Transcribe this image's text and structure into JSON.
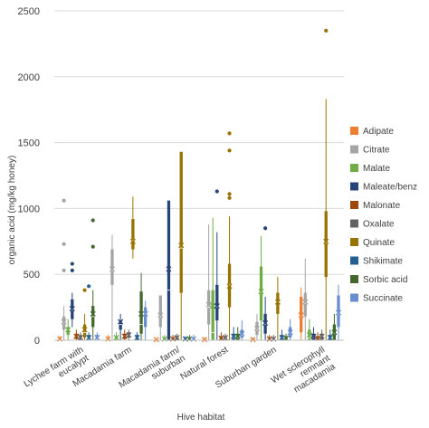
{
  "chart_data": {
    "type": "box",
    "xlabel": "Hive habitat",
    "ylabel": "organic acid (mg/kg honey)",
    "ylim": [
      0,
      2500
    ],
    "yticks": [
      0,
      500,
      1000,
      1500,
      2000,
      2500
    ],
    "grid": "horizontal",
    "legend_position": "right",
    "categories": [
      "Lychee farm with eucalypt",
      "Macadamia farm",
      "Macadamia farm/ suburban",
      "Natural forest",
      "Suburban garden",
      "Wet sclerophyll remnant macadamia"
    ],
    "series": [
      {
        "name": "Adipate",
        "color": "#ED7D31",
        "boxes": [
          {
            "min": 0,
            "q1": 0,
            "median": 0,
            "q3": 10,
            "max": 30,
            "mean": 10,
            "outliers": []
          },
          {
            "min": 0,
            "q1": 0,
            "median": 0,
            "q3": 10,
            "max": 40,
            "mean": 10,
            "outliers": []
          },
          {
            "min": 0,
            "q1": 0,
            "median": 0,
            "q3": 5,
            "max": 10,
            "mean": 5,
            "outliers": []
          },
          {
            "min": 0,
            "q1": 0,
            "median": 0,
            "q3": 10,
            "max": 20,
            "mean": 5,
            "outliers": []
          },
          {
            "min": 0,
            "q1": 0,
            "median": 0,
            "q3": 10,
            "max": 20,
            "mean": 5,
            "outliers": []
          },
          {
            "min": 0,
            "q1": 60,
            "median": 180,
            "q3": 330,
            "max": 400,
            "mean": 190,
            "outliers": []
          }
        ]
      },
      {
        "name": "Citrate",
        "color": "#A5A5A5",
        "boxes": [
          {
            "min": 0,
            "q1": 80,
            "median": 130,
            "q3": 180,
            "max": 260,
            "mean": 140,
            "outliers": [
              530,
              730,
              1060
            ]
          },
          {
            "min": 0,
            "q1": 420,
            "median": 530,
            "q3": 690,
            "max": 800,
            "mean": 540,
            "outliers": []
          },
          {
            "min": 0,
            "q1": 100,
            "median": 180,
            "q3": 340,
            "max": 340,
            "mean": 190,
            "outliers": []
          },
          {
            "min": 0,
            "q1": 120,
            "median": 250,
            "q3": 380,
            "max": 880,
            "mean": 270,
            "outliers": []
          },
          {
            "min": 0,
            "q1": 40,
            "median": 80,
            "q3": 140,
            "max": 200,
            "mean": 90,
            "outliers": []
          },
          {
            "min": 0,
            "q1": 180,
            "median": 280,
            "q3": 360,
            "max": 620,
            "mean": 290,
            "outliers": []
          }
        ]
      },
      {
        "name": "Malate",
        "color": "#70AD47",
        "boxes": [
          {
            "min": 0,
            "q1": 40,
            "median": 80,
            "q3": 100,
            "max": 160,
            "mean": 80,
            "outliers": []
          },
          {
            "min": 0,
            "q1": 0,
            "median": 10,
            "q3": 30,
            "max": 60,
            "mean": 20,
            "outliers": []
          },
          {
            "min": 0,
            "q1": 0,
            "median": 0,
            "q3": 20,
            "max": 40,
            "mean": 10,
            "outliers": []
          },
          {
            "min": 0,
            "q1": 0,
            "median": 60,
            "q3": 380,
            "max": 930,
            "mean": 260,
            "outliers": []
          },
          {
            "min": 0,
            "q1": 150,
            "median": 360,
            "q3": 560,
            "max": 790,
            "mean": 370,
            "outliers": []
          },
          {
            "min": 0,
            "q1": 0,
            "median": 20,
            "q3": 80,
            "max": 160,
            "mean": 40,
            "outliers": []
          }
        ]
      },
      {
        "name": "Maleate/benz",
        "color": "#264478",
        "boxes": [
          {
            "min": 100,
            "q1": 160,
            "median": 230,
            "q3": 310,
            "max": 360,
            "mean": 240,
            "outliers": [
              530,
              580
            ]
          },
          {
            "min": 0,
            "q1": 80,
            "median": 120,
            "q3": 150,
            "max": 200,
            "mean": 140,
            "outliers": []
          },
          {
            "min": 0,
            "q1": 0,
            "median": 380,
            "q3": 1060,
            "max": 1060,
            "mean": 540,
            "outliers": []
          },
          {
            "min": 0,
            "q1": 150,
            "median": 250,
            "q3": 420,
            "max": 820,
            "mean": 260,
            "outliers": [
              1130
            ]
          },
          {
            "min": 0,
            "q1": 50,
            "median": 120,
            "q3": 200,
            "max": 330,
            "mean": 130,
            "outliers": [
              850
            ]
          },
          {
            "min": 0,
            "q1": 0,
            "median": 20,
            "q3": 50,
            "max": 100,
            "mean": 30,
            "outliers": []
          }
        ]
      },
      {
        "name": "Malonate",
        "color": "#9E480E",
        "boxes": [
          {
            "min": 0,
            "q1": 10,
            "median": 30,
            "q3": 50,
            "max": 80,
            "mean": 30,
            "outliers": []
          },
          {
            "min": 0,
            "q1": 10,
            "median": 30,
            "q3": 50,
            "max": 80,
            "mean": 30,
            "outliers": []
          },
          {
            "min": 0,
            "q1": 0,
            "median": 10,
            "q3": 20,
            "max": 40,
            "mean": 10,
            "outliers": []
          },
          {
            "min": 0,
            "q1": 0,
            "median": 10,
            "q3": 30,
            "max": 60,
            "mean": 15,
            "outliers": []
          },
          {
            "min": 0,
            "q1": 0,
            "median": 10,
            "q3": 20,
            "max": 40,
            "mean": 10,
            "outliers": []
          },
          {
            "min": 0,
            "q1": 0,
            "median": 10,
            "q3": 30,
            "max": 60,
            "mean": 15,
            "outliers": []
          }
        ]
      },
      {
        "name": "Oxalate",
        "color": "#636363",
        "boxes": [
          {
            "min": 0,
            "q1": 0,
            "median": 20,
            "q3": 40,
            "max": 60,
            "mean": 20,
            "outliers": []
          },
          {
            "min": 0,
            "q1": 20,
            "median": 40,
            "q3": 60,
            "max": 80,
            "mean": 40,
            "outliers": []
          },
          {
            "min": 0,
            "q1": 0,
            "median": 20,
            "q3": 30,
            "max": 50,
            "mean": 20,
            "outliers": []
          },
          {
            "min": 0,
            "q1": 0,
            "median": 10,
            "q3": 30,
            "max": 50,
            "mean": 20,
            "outliers": []
          },
          {
            "min": 0,
            "q1": 0,
            "median": 10,
            "q3": 20,
            "max": 40,
            "mean": 10,
            "outliers": []
          },
          {
            "min": 0,
            "q1": 0,
            "median": 30,
            "q3": 50,
            "max": 80,
            "mean": 30,
            "outliers": []
          }
        ]
      },
      {
        "name": "Quinate",
        "color": "#997300",
        "boxes": [
          {
            "min": 0,
            "q1": 20,
            "median": 60,
            "q3": 120,
            "max": 200,
            "mean": 80,
            "outliers": [
              380
            ]
          },
          {
            "min": 620,
            "q1": 690,
            "median": 760,
            "q3": 920,
            "max": 1090,
            "mean": 750,
            "outliers": []
          },
          {
            "min": 0,
            "q1": 360,
            "median": 700,
            "q3": 1430,
            "max": 1430,
            "mean": 720,
            "outliers": []
          },
          {
            "min": 0,
            "q1": 250,
            "median": 420,
            "q3": 580,
            "max": 940,
            "mean": 410,
            "outliers": [
              1080,
              1110,
              1440,
              1570
            ]
          },
          {
            "min": 0,
            "q1": 200,
            "median": 290,
            "q3": 360,
            "max": 480,
            "mean": 290,
            "outliers": []
          },
          {
            "min": 0,
            "q1": 480,
            "median": 740,
            "q3": 980,
            "max": 1830,
            "mean": 750,
            "outliers": [
              2350
            ]
          }
        ]
      },
      {
        "name": "Shikimate",
        "color": "#255E91",
        "boxes": [
          {
            "min": 0,
            "q1": 10,
            "median": 20,
            "q3": 40,
            "max": 60,
            "mean": 20,
            "outliers": [
              410
            ]
          },
          {
            "min": 0,
            "q1": 0,
            "median": 20,
            "q3": 40,
            "max": 60,
            "mean": 20,
            "outliers": []
          },
          {
            "min": 0,
            "q1": 0,
            "median": 10,
            "q3": 20,
            "max": 30,
            "mean": 10,
            "outliers": []
          },
          {
            "min": 0,
            "q1": 0,
            "median": 20,
            "q3": 50,
            "max": 100,
            "mean": 30,
            "outliers": []
          },
          {
            "min": 0,
            "q1": 0,
            "median": 20,
            "q3": 40,
            "max": 80,
            "mean": 20,
            "outliers": []
          },
          {
            "min": 0,
            "q1": 0,
            "median": 20,
            "q3": 40,
            "max": 80,
            "mean": 20,
            "outliers": []
          }
        ]
      },
      {
        "name": "Sorbic acid",
        "color": "#43682B",
        "boxes": [
          {
            "min": 0,
            "q1": 100,
            "median": 180,
            "q3": 260,
            "max": 380,
            "mean": 200,
            "outliers": [
              710,
              910
            ]
          },
          {
            "min": 0,
            "q1": 50,
            "median": 120,
            "q3": 370,
            "max": 510,
            "mean": 200,
            "outliers": []
          },
          {
            "min": 0,
            "q1": 0,
            "median": 10,
            "q3": 20,
            "max": 40,
            "mean": 10,
            "outliers": []
          },
          {
            "min": 0,
            "q1": 0,
            "median": 20,
            "q3": 50,
            "max": 100,
            "mean": 30,
            "outliers": []
          },
          {
            "min": 0,
            "q1": 0,
            "median": 10,
            "q3": 30,
            "max": 50,
            "mean": 15,
            "outliers": []
          },
          {
            "min": 0,
            "q1": 0,
            "median": 50,
            "q3": 120,
            "max": 200,
            "mean": 60,
            "outliers": []
          }
        ]
      },
      {
        "name": "Succinate",
        "color": "#698ED0",
        "boxes": [
          {
            "min": 0,
            "q1": 10,
            "median": 20,
            "q3": 40,
            "max": 60,
            "mean": 20,
            "outliers": []
          },
          {
            "min": 0,
            "q1": 100,
            "median": 200,
            "q3": 250,
            "max": 300,
            "mean": 200,
            "outliers": []
          },
          {
            "min": 0,
            "q1": 0,
            "median": 10,
            "q3": 20,
            "max": 40,
            "mean": 10,
            "outliers": []
          },
          {
            "min": 0,
            "q1": 20,
            "median": 40,
            "q3": 80,
            "max": 150,
            "mean": 50,
            "outliers": []
          },
          {
            "min": 0,
            "q1": 20,
            "median": 50,
            "q3": 100,
            "max": 160,
            "mean": 60,
            "outliers": []
          },
          {
            "min": 0,
            "q1": 100,
            "median": 200,
            "q3": 340,
            "max": 420,
            "mean": 210,
            "outliers": []
          }
        ]
      }
    ]
  }
}
